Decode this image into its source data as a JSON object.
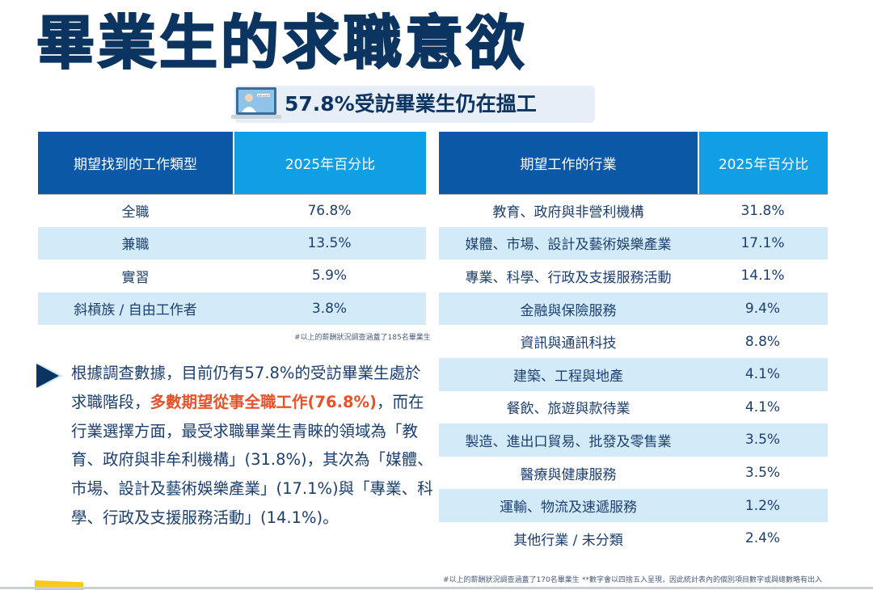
{
  "title": "畢業生的求職意欲",
  "subtitle": {
    "text": "57.8%受訪畢業生仍在搵工",
    "icon": "laptop-job-hunt-icon",
    "icon_text": "JOB HUNT"
  },
  "left_table": {
    "headers": [
      "期望找到的工作類型",
      "2025年百分比"
    ],
    "rows": [
      [
        "全職",
        "76.8%"
      ],
      [
        "兼職",
        "13.5%"
      ],
      [
        "實習",
        "5.9%"
      ],
      [
        "斜槓族 / 自由工作者",
        "3.8%"
      ]
    ],
    "note": "#以上的薪酬狀況調查涵蓋了185名畢業生"
  },
  "right_table": {
    "headers": [
      "期望工作的行業",
      "2025年百分比"
    ],
    "rows": [
      [
        "教育、政府與非營利機構",
        "31.8%"
      ],
      [
        "媒體、市場、設計及藝術娛樂產業",
        "17.1%"
      ],
      [
        "專業、科學、行政及支援服務活動",
        "14.1%"
      ],
      [
        "金融與保險服務",
        "9.4%"
      ],
      [
        "資訊與通訊科技",
        "8.8%"
      ],
      [
        "建築、工程與地產",
        "4.1%"
      ],
      [
        "餐飲、旅遊與款待業",
        "4.1%"
      ],
      [
        "製造、進出口貿易、批發及零售業",
        "3.5%"
      ],
      [
        "醫療與健康服務",
        "3.5%"
      ],
      [
        "運輸、物流及速遞服務",
        "1.2%"
      ],
      [
        "其他行業 / 未分類",
        "2.4%"
      ]
    ],
    "note": "#以上的薪酬狀況調查涵蓋了170名畢業生",
    "note2": "**數字會以四捨五入呈現，因此統計表內的個別項目數字或與總數略有出入"
  },
  "paragraph": {
    "part1": "根據調查數據，目前仍有57.8%的受訪畢業生處於求職階段，",
    "highlight": "多數期望從事全職工作(76.8%)",
    "part2": "，而在行業選擇方面，最受求職畢業生青睞的領域為「教育、政府與非牟利機構」(31.8%)，其次為「媒體、市場、設計及藝術娛樂產業」(17.1%)與「專業、科學、行政及支援服務活動」(14.1%)。"
  },
  "colors": {
    "navy": "#0c3460",
    "header_dark": "#0b58a6",
    "header_light": "#109fe4",
    "row_alt": "#d3ebf9",
    "highlight": "#e6532a"
  }
}
